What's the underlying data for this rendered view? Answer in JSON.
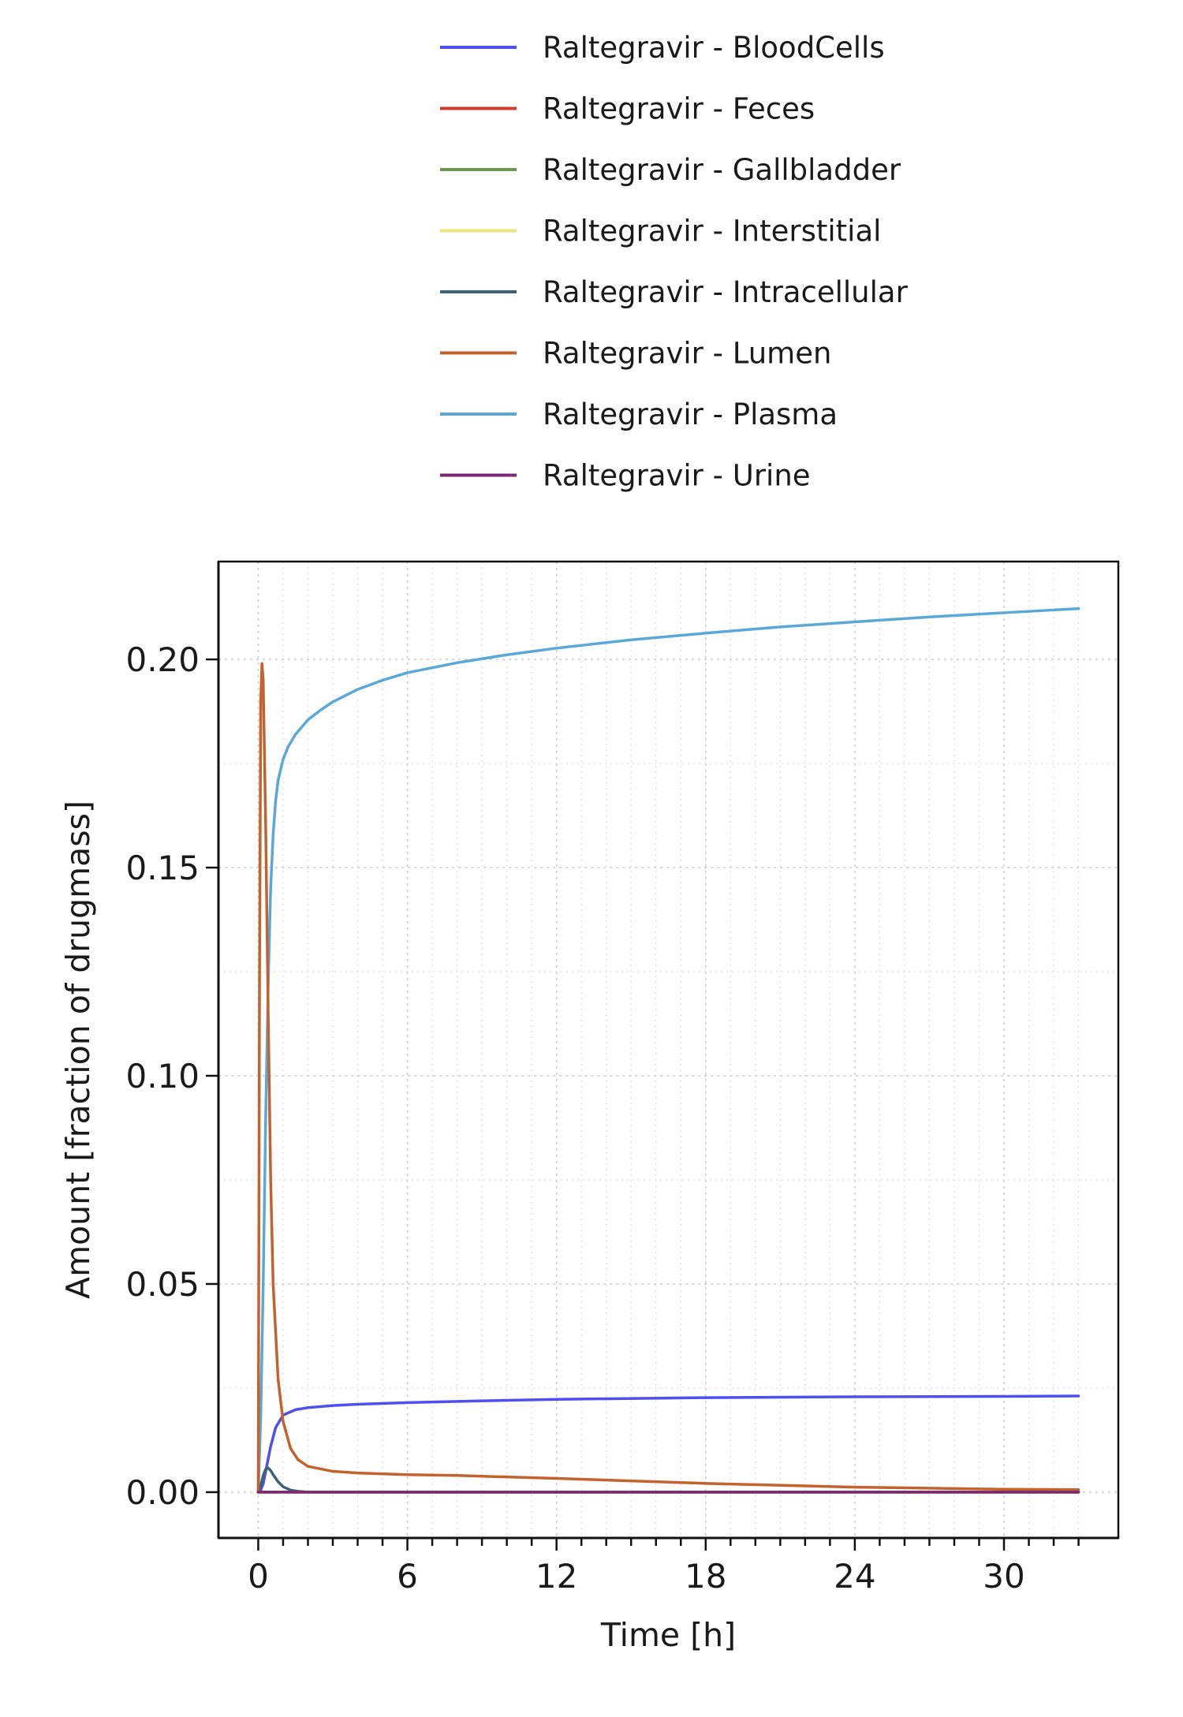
{
  "chart_data": {
    "type": "line",
    "xlabel": "Time [h]",
    "ylabel": "Amount [fraction of drugmass]",
    "xlim": [
      -1.6,
      34.6
    ],
    "ylim": [
      -0.011,
      0.2235
    ],
    "x_ticks": [
      0,
      6,
      12,
      18,
      24,
      30
    ],
    "x_tick_labels": [
      "0",
      "6",
      "12",
      "18",
      "24",
      "30"
    ],
    "y_ticks": [
      0.0,
      0.05,
      0.1,
      0.15,
      0.2
    ],
    "y_tick_labels": [
      "0.00",
      "0.05",
      "0.10",
      "0.15",
      "0.20"
    ],
    "grid": true,
    "legend_position": "top",
    "series": [
      {
        "name": "Raltegravir - BloodCells",
        "color": "#4f4ff0",
        "x": [
          0,
          0.1,
          0.2,
          0.3,
          0.5,
          0.7,
          1.0,
          1.5,
          2.0,
          3.0,
          4.0,
          6.0,
          8.0,
          12.0,
          18.0,
          24.0,
          30.0,
          33.0
        ],
        "y": [
          0,
          0.0005,
          0.002,
          0.005,
          0.011,
          0.0155,
          0.0185,
          0.0198,
          0.0203,
          0.0208,
          0.0211,
          0.0215,
          0.0218,
          0.0223,
          0.0227,
          0.0229,
          0.023,
          0.0231
        ]
      },
      {
        "name": "Raltegravir - Feces",
        "color": "#d43a2c",
        "x": [
          0,
          6,
          12,
          18,
          24,
          30,
          33
        ],
        "y": [
          0,
          0,
          0,
          0,
          0,
          0,
          0
        ]
      },
      {
        "name": "Raltegravir - Gallbladder",
        "color": "#6b9a4e",
        "x": [
          0,
          6,
          12,
          18,
          24,
          30,
          33
        ],
        "y": [
          0,
          0,
          0,
          0,
          0,
          0,
          0
        ]
      },
      {
        "name": "Raltegravir - Interstitial",
        "color": "#ece480",
        "x": [
          0,
          6,
          12,
          18,
          24,
          30,
          33
        ],
        "y": [
          0,
          0,
          0,
          0,
          0,
          0,
          0
        ]
      },
      {
        "name": "Raltegravir - Intracellular",
        "color": "#3e6176",
        "x": [
          0,
          0.1,
          0.2,
          0.3,
          0.4,
          0.5,
          0.6,
          0.8,
          1.0,
          1.3,
          1.6,
          2.0,
          3.0,
          33.0
        ],
        "y": [
          0,
          0.0015,
          0.004,
          0.0055,
          0.0058,
          0.0052,
          0.0042,
          0.0025,
          0.0013,
          0.0005,
          0.0002,
          0.0,
          0.0,
          0.0
        ]
      },
      {
        "name": "Raltegravir - Lumen",
        "color": "#c4622d",
        "x": [
          0,
          0.05,
          0.1,
          0.15,
          0.2,
          0.3,
          0.4,
          0.5,
          0.6,
          0.8,
          1.0,
          1.3,
          1.6,
          2.0,
          3.0,
          4.0,
          6.0,
          8.0,
          12.0,
          18.0,
          24.0,
          30.0,
          33.0
        ],
        "y": [
          0,
          0.12,
          0.19,
          0.199,
          0.195,
          0.16,
          0.115,
          0.075,
          0.05,
          0.027,
          0.017,
          0.0105,
          0.0078,
          0.0062,
          0.005,
          0.0046,
          0.0042,
          0.004,
          0.0033,
          0.0021,
          0.0012,
          0.0007,
          0.0006
        ]
      },
      {
        "name": "Raltegravir - Plasma",
        "color": "#5aa8d8",
        "x": [
          0,
          0.1,
          0.2,
          0.3,
          0.4,
          0.5,
          0.6,
          0.7,
          0.8,
          1.0,
          1.2,
          1.5,
          2.0,
          2.5,
          3.0,
          4.0,
          5.0,
          6.0,
          8.0,
          10.0,
          12.0,
          15.0,
          18.0,
          21.0,
          24.0,
          27.0,
          30.0,
          33.0
        ],
        "y": [
          0,
          0.018,
          0.05,
          0.09,
          0.122,
          0.145,
          0.158,
          0.166,
          0.171,
          0.176,
          0.179,
          0.182,
          0.1855,
          0.1878,
          0.1898,
          0.1928,
          0.195,
          0.1968,
          0.1992,
          0.2011,
          0.2027,
          0.2047,
          0.2063,
          0.2078,
          0.209,
          0.2102,
          0.2112,
          0.2122
        ]
      },
      {
        "name": "Raltegravir - Urine",
        "color": "#7a2a73",
        "x": [
          0,
          6,
          12,
          18,
          24,
          30,
          33
        ],
        "y": [
          0,
          0,
          0,
          0,
          0,
          0,
          0
        ]
      }
    ]
  }
}
